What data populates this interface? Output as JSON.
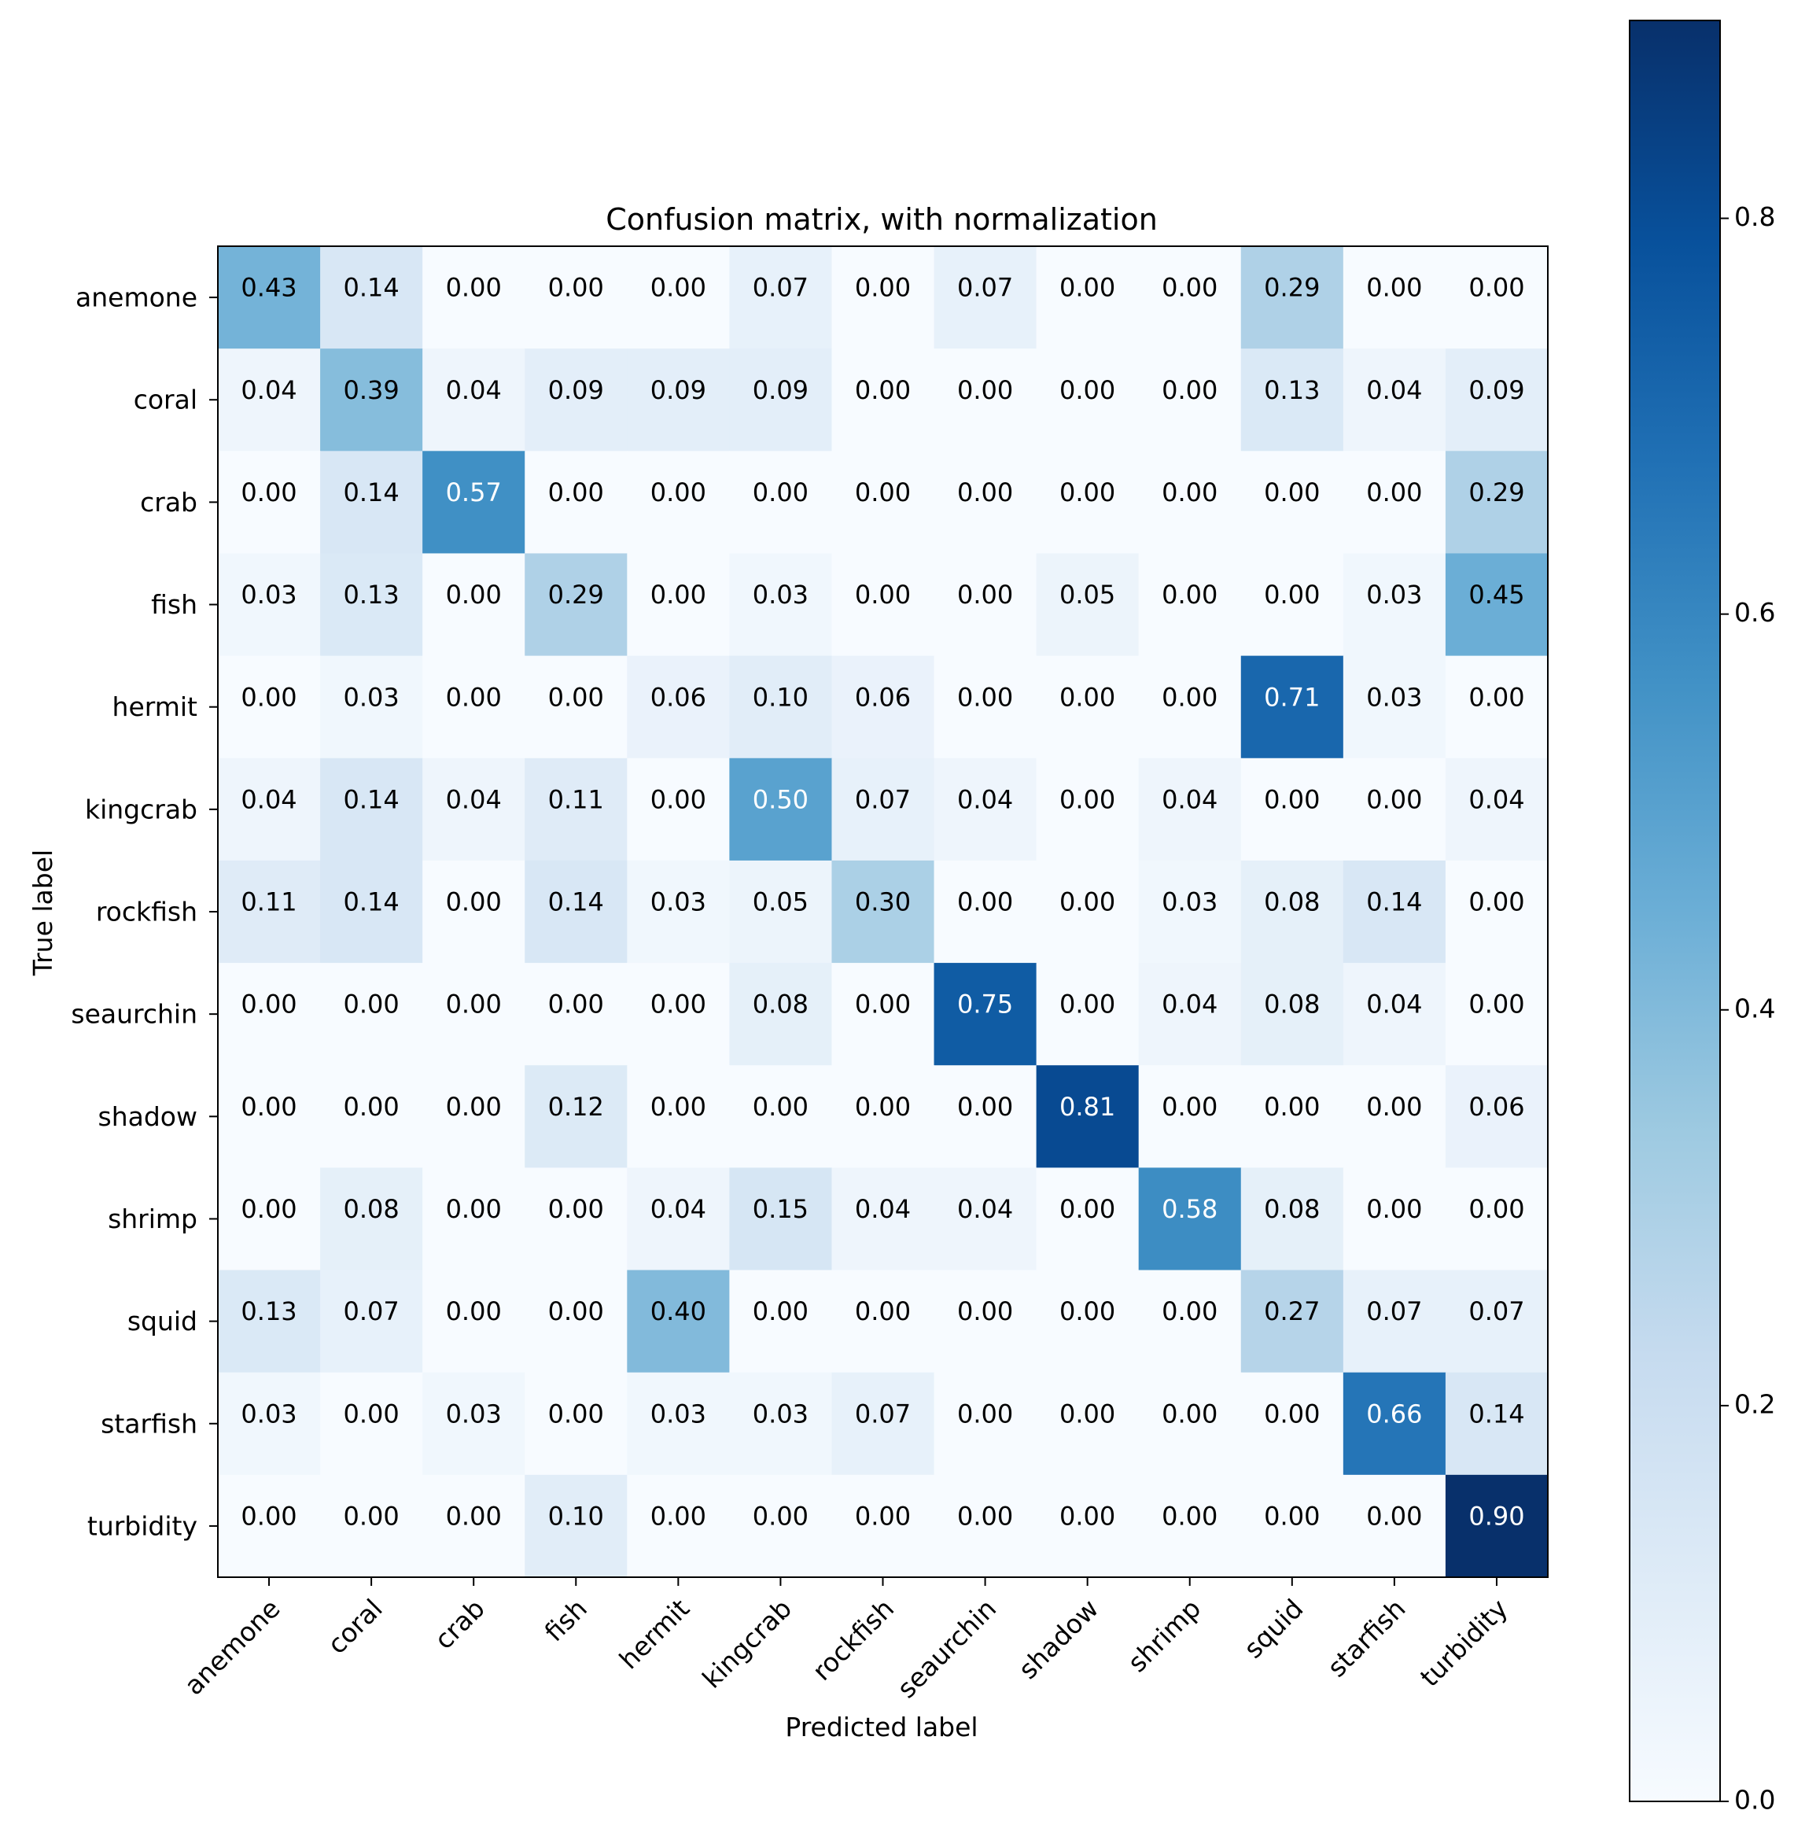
{
  "chart_data": {
    "type": "heatmap",
    "title": "Confusion matrix, with normalization",
    "xlabel": "Predicted label",
    "ylabel": "True label",
    "x_categories": [
      "anemone",
      "coral",
      "crab",
      "fish",
      "hermit",
      "kingcrab",
      "rockfish",
      "seaurchin",
      "shadow",
      "shrimp",
      "squid",
      "starfish",
      "turbidity"
    ],
    "y_categories": [
      "anemone",
      "coral",
      "crab",
      "fish",
      "hermit",
      "kingcrab",
      "rockfish",
      "seaurchin",
      "shadow",
      "shrimp",
      "squid",
      "starfish",
      "turbidity"
    ],
    "values": [
      [
        0.43,
        0.14,
        0.0,
        0.0,
        0.0,
        0.07,
        0.0,
        0.07,
        0.0,
        0.0,
        0.29,
        0.0,
        0.0
      ],
      [
        0.04,
        0.39,
        0.04,
        0.09,
        0.09,
        0.09,
        0.0,
        0.0,
        0.0,
        0.0,
        0.13,
        0.04,
        0.09
      ],
      [
        0.0,
        0.14,
        0.57,
        0.0,
        0.0,
        0.0,
        0.0,
        0.0,
        0.0,
        0.0,
        0.0,
        0.0,
        0.29
      ],
      [
        0.03,
        0.13,
        0.0,
        0.29,
        0.0,
        0.03,
        0.0,
        0.0,
        0.05,
        0.0,
        0.0,
        0.03,
        0.45
      ],
      [
        0.0,
        0.03,
        0.0,
        0.0,
        0.06,
        0.1,
        0.06,
        0.0,
        0.0,
        0.0,
        0.71,
        0.03,
        0.0
      ],
      [
        0.04,
        0.14,
        0.04,
        0.11,
        0.0,
        0.5,
        0.07,
        0.04,
        0.0,
        0.04,
        0.0,
        0.0,
        0.04
      ],
      [
        0.11,
        0.14,
        0.0,
        0.14,
        0.03,
        0.05,
        0.3,
        0.0,
        0.0,
        0.03,
        0.08,
        0.14,
        0.0
      ],
      [
        0.0,
        0.0,
        0.0,
        0.0,
        0.0,
        0.08,
        0.0,
        0.75,
        0.0,
        0.04,
        0.08,
        0.04,
        0.0
      ],
      [
        0.0,
        0.0,
        0.0,
        0.12,
        0.0,
        0.0,
        0.0,
        0.0,
        0.81,
        0.0,
        0.0,
        0.0,
        0.06
      ],
      [
        0.0,
        0.08,
        0.0,
        0.0,
        0.04,
        0.15,
        0.04,
        0.04,
        0.0,
        0.58,
        0.08,
        0.0,
        0.0
      ],
      [
        0.13,
        0.07,
        0.0,
        0.0,
        0.4,
        0.0,
        0.0,
        0.0,
        0.0,
        0.0,
        0.27,
        0.07,
        0.07
      ],
      [
        0.03,
        0.0,
        0.03,
        0.0,
        0.03,
        0.03,
        0.07,
        0.0,
        0.0,
        0.0,
        0.0,
        0.66,
        0.14
      ],
      [
        0.0,
        0.0,
        0.0,
        0.1,
        0.0,
        0.0,
        0.0,
        0.0,
        0.0,
        0.0,
        0.0,
        0.0,
        0.9
      ]
    ],
    "colormap": "Blues",
    "colorbar": {
      "min": 0.0,
      "max": 0.9,
      "ticks": [
        0.0,
        0.2,
        0.4,
        0.6,
        0.8
      ],
      "tick_labels": [
        "0.0",
        "0.2",
        "0.4",
        "0.6",
        "0.8"
      ]
    },
    "text_threshold": 0.45,
    "legend": "colorbar-right"
  }
}
